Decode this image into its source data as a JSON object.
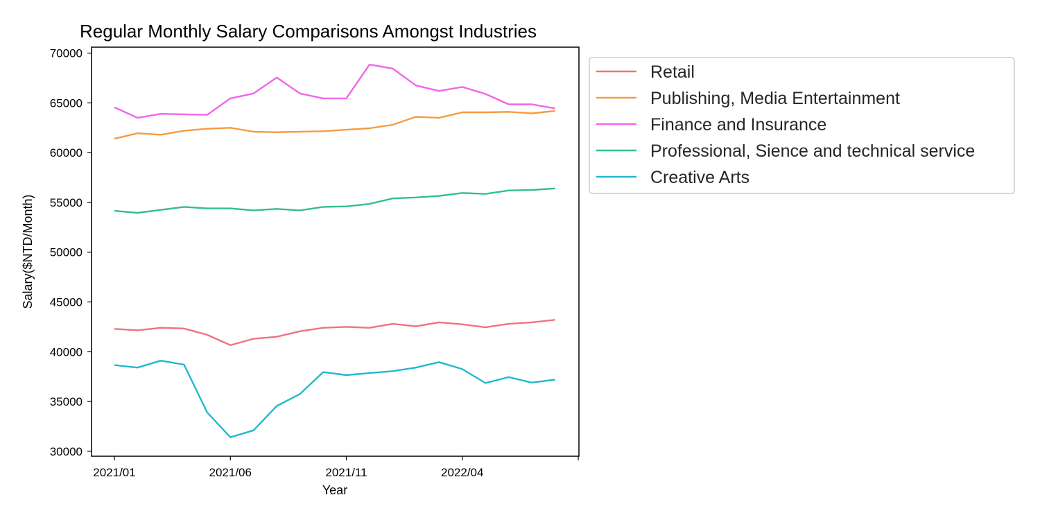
{
  "chart_data": {
    "type": "line",
    "title": "Regular Monthly Salary Comparisons Amongst Industries",
    "xlabel": "Year",
    "ylabel": "Salary($NTD/Month)",
    "x": [
      "2021/01",
      "2021/02",
      "2021/03",
      "2021/04",
      "2021/05",
      "2021/06",
      "2021/07",
      "2021/08",
      "2021/09",
      "2021/10",
      "2021/11",
      "2021/12",
      "2022/01",
      "2022/02",
      "2022/03",
      "2022/04",
      "2022/05",
      "2022/06",
      "2022/07",
      "2022/08"
    ],
    "x_ticks": [
      "2021/01",
      "2021/06",
      "2021/11",
      "2022/04"
    ],
    "ylim": [
      29500,
      70600
    ],
    "y_ticks": [
      30000,
      35000,
      40000,
      45000,
      50000,
      55000,
      60000,
      65000,
      70000
    ],
    "grid": false,
    "legend_position": "outside-right",
    "series": [
      {
        "name": "Retail",
        "color": "#f0727f",
        "values": [
          42300,
          42150,
          42400,
          42330,
          41700,
          40650,
          41300,
          41500,
          42050,
          42400,
          42500,
          42400,
          42800,
          42550,
          42950,
          42750,
          42450,
          42800,
          42950,
          43200
        ]
      },
      {
        "name": "Publishing, Media Entertainment",
        "color": "#f79a43",
        "values": [
          61400,
          61950,
          61800,
          62200,
          62400,
          62500,
          62100,
          62050,
          62100,
          62150,
          62300,
          62450,
          62800,
          63600,
          63500,
          64050,
          64050,
          64100,
          63950,
          64200
        ]
      },
      {
        "name": "Finance and Insurance",
        "color": "#f265e8",
        "values": [
          64550,
          63500,
          63900,
          63850,
          63800,
          65450,
          65950,
          67550,
          65950,
          65450,
          65450,
          68850,
          68450,
          66750,
          66200,
          66600,
          65900,
          64850,
          64850,
          64450
        ]
      },
      {
        "name": "Professional, Sience and technical service",
        "color": "#31c08b",
        "values": [
          54150,
          53950,
          54250,
          54550,
          54400,
          54400,
          54200,
          54350,
          54200,
          54550,
          54600,
          54850,
          55400,
          55500,
          55650,
          55950,
          55850,
          56200,
          56250,
          56400
        ]
      },
      {
        "name": "Creative Arts",
        "color": "#22b8cf",
        "values": [
          38650,
          38400,
          39100,
          38700,
          33900,
          31400,
          32100,
          34550,
          35750,
          37950,
          37650,
          37850,
          38050,
          38400,
          38950,
          38250,
          36850,
          37450,
          36900,
          37200
        ]
      }
    ]
  }
}
